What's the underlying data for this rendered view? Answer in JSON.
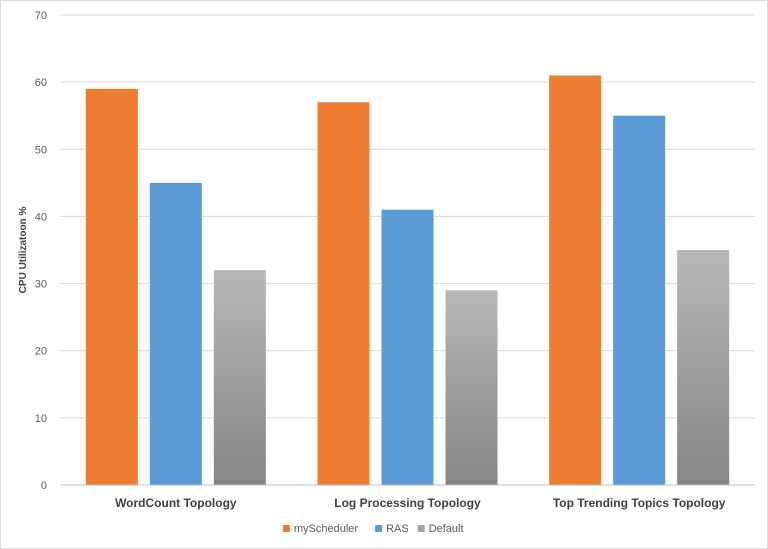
{
  "chart_data": {
    "type": "bar",
    "title": "",
    "xlabel": "",
    "ylabel": "CPU Utilizatoon %",
    "categories": [
      "WordCount Topology",
      "Log Processing Topology",
      "Top Trending Topics Topology"
    ],
    "series": [
      {
        "name": "myScheduler",
        "values": [
          59,
          57,
          61
        ],
        "color": "#ed7d31"
      },
      {
        "name": "RAS",
        "values": [
          45,
          41,
          55
        ],
        "color": "#5b9bd5"
      },
      {
        "name": "Default",
        "values": [
          32,
          29,
          35
        ],
        "color": "#a5a5a5",
        "gradient_to": "#868686"
      }
    ],
    "ylim": [
      0,
      70
    ],
    "yticks": [
      0,
      10,
      20,
      30,
      40,
      50,
      60,
      70
    ],
    "grid": true,
    "legend_position": "bottom"
  }
}
